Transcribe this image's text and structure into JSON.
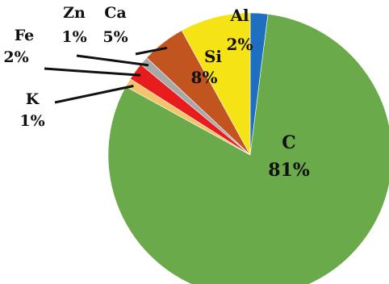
{
  "chart_data": {
    "type": "pie",
    "title": "",
    "slices": [
      {
        "name": "Al",
        "value": 2,
        "label": "2%",
        "color": "#1f6fc0"
      },
      {
        "name": "C",
        "value": 81,
        "label": "81%",
        "color": "#6aaa4b"
      },
      {
        "name": "K",
        "value": 1,
        "label": "1%",
        "color": "#f4c46a"
      },
      {
        "name": "Fe",
        "value": 2,
        "label": "2%",
        "color": "#e81c1c"
      },
      {
        "name": "Zn",
        "value": 1,
        "label": "1%",
        "color": "#a8a8a8"
      },
      {
        "name": "Ca",
        "value": 5,
        "label": "5%",
        "color": "#c2541f"
      },
      {
        "name": "Si",
        "value": 8,
        "label": "8%",
        "color": "#f5e316"
      }
    ],
    "start_angle": "12 o'clock",
    "direction": "clockwise",
    "legend": "none"
  }
}
